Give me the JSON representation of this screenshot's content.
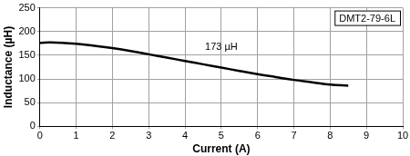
{
  "chart_data": {
    "type": "line",
    "title": "DMT2-79-6L",
    "x_label": "Current (A)",
    "y_label": "Inductance (µH)",
    "x": [
      0,
      0.3,
      1,
      1.5,
      2,
      2.5,
      3,
      3.5,
      4,
      4.5,
      5,
      5.5,
      6,
      6.5,
      7,
      7.5,
      8,
      8.5
    ],
    "values": [
      176,
      177,
      174,
      170,
      165,
      159,
      152,
      145,
      138,
      131,
      124,
      117,
      110,
      104,
      98,
      93,
      88,
      86
    ],
    "color": "#000000",
    "marker": "none",
    "line_style": "solid",
    "xlim": [
      0,
      10
    ],
    "xticks": [
      0,
      1,
      2,
      3,
      4,
      5,
      6,
      7,
      8,
      9,
      10
    ],
    "ylim": [
      0,
      250
    ],
    "yticks": [
      0,
      50,
      100,
      150,
      200,
      250
    ],
    "grid": true,
    "annotations": [
      {
        "text": "173 µH",
        "x": 5.0,
        "y": 152
      }
    ]
  }
}
